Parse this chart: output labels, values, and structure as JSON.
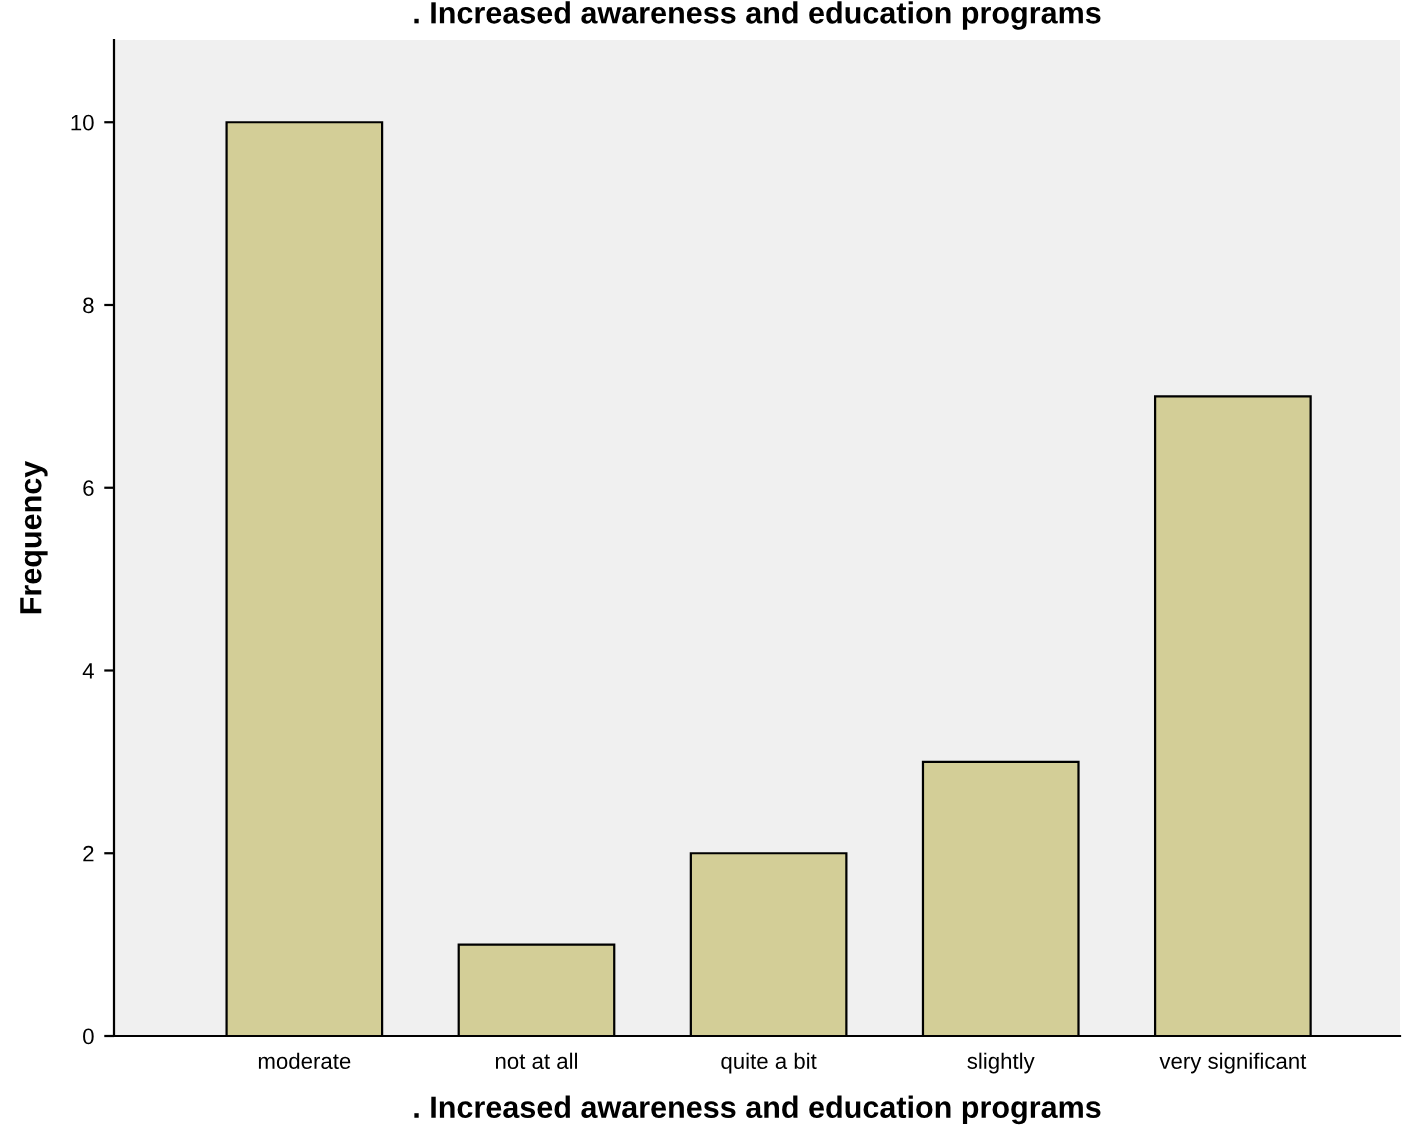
{
  "chart_data": {
    "type": "bar",
    "title": ". Increased awareness and education programs",
    "xlabel": ". Increased awareness and education programs",
    "ylabel": "Frequency",
    "categories": [
      "moderate",
      "not at all",
      "quite a bit",
      "slightly",
      "very significant"
    ],
    "values": [
      10,
      1,
      2,
      3,
      7
    ],
    "color": "#d3ce97",
    "ylim": [
      0,
      10.9
    ],
    "yticks": [
      0,
      2,
      4,
      6,
      8,
      10
    ],
    "grid": false,
    "legend": false
  }
}
